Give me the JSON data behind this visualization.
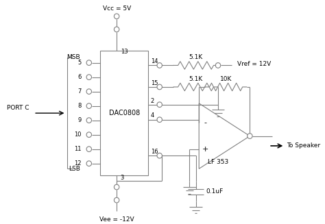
{
  "bg_color": "#ffffff",
  "line_color": "#808080",
  "text_color": "#000000",
  "labels": {
    "Vcc": "Vcc = 5V",
    "Vee": "Vee = -12V",
    "Vref": "Vref = 12V",
    "port": "PORT C",
    "dac": "DAC0808",
    "opamp": "LF 353",
    "speaker": "To Speaker",
    "MSB": "MSB",
    "LSB": "LSB",
    "r1": "5.1K",
    "r2": "5.1K",
    "r3": "10K",
    "cap": "0.1uF"
  }
}
